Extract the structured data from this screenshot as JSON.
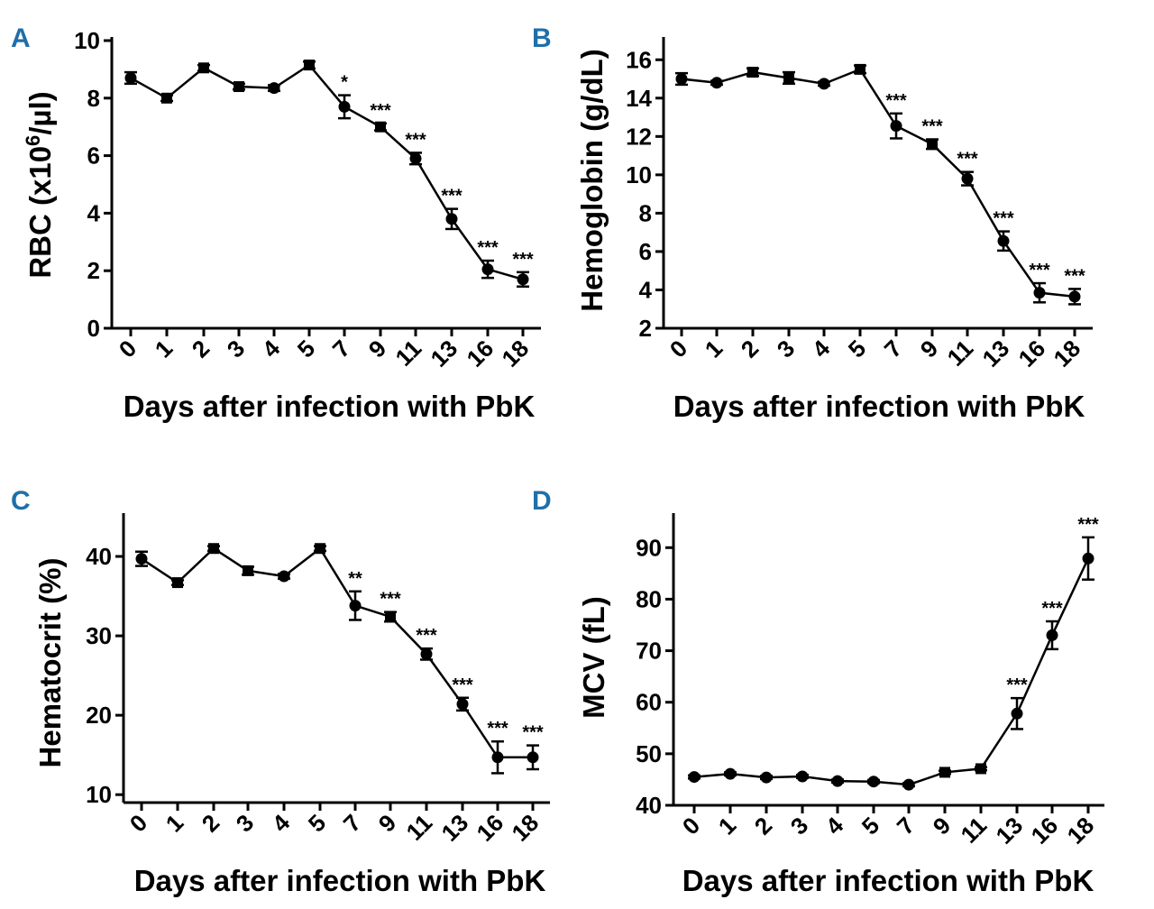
{
  "panel_color": "#1f6fa8",
  "chart_data": [
    {
      "panel": "A",
      "type": "line",
      "xlabel": "Days after infection with PbK",
      "ylabel": "RBC (x10",
      "ylabel_sup": "6",
      "ylabel_end": "/µl)",
      "categories": [
        "0",
        "1",
        "2",
        "3",
        "4",
        "5",
        "7",
        "9",
        "11",
        "13",
        "16",
        "18"
      ],
      "values": [
        8.7,
        8.0,
        9.05,
        8.4,
        8.35,
        9.15,
        7.7,
        7.0,
        5.9,
        3.8,
        2.05,
        1.7
      ],
      "errors": [
        0.2,
        0.1,
        0.1,
        0.1,
        0.1,
        0.12,
        0.4,
        0.12,
        0.2,
        0.35,
        0.3,
        0.25
      ],
      "markers": [
        "circle",
        "square",
        "square",
        "square",
        "circle",
        "square",
        "circle",
        "square",
        "circle",
        "circle",
        "circle",
        "circle"
      ],
      "significance": [
        "",
        "",
        "",
        "",
        "",
        "",
        "*",
        "***",
        "***",
        "***",
        "***",
        "***"
      ],
      "ylim": [
        0,
        10
      ],
      "yticks": [
        "0",
        "2",
        "4",
        "6",
        "8",
        "10"
      ]
    },
    {
      "panel": "B",
      "type": "line",
      "xlabel": "Days after infection with PbK",
      "ylabel": "Hemoglobin (g/dL)",
      "categories": [
        "0",
        "1",
        "2",
        "3",
        "4",
        "5",
        "7",
        "9",
        "11",
        "13",
        "16",
        "18"
      ],
      "values": [
        15.0,
        14.8,
        15.35,
        15.05,
        14.75,
        15.5,
        12.55,
        11.6,
        9.8,
        6.55,
        3.85,
        3.65
      ],
      "errors": [
        0.3,
        0.1,
        0.2,
        0.3,
        0.1,
        0.2,
        0.65,
        0.25,
        0.35,
        0.5,
        0.5,
        0.4
      ],
      "markers": [
        "circle",
        "circle",
        "square",
        "square",
        "circle",
        "square",
        "circle",
        "square",
        "circle",
        "circle",
        "circle",
        "circle"
      ],
      "significance": [
        "",
        "",
        "",
        "",
        "",
        "",
        "***",
        "***",
        "***",
        "***",
        "***",
        "***"
      ],
      "ylim": [
        2,
        17
      ],
      "yticks": [
        "2",
        "4",
        "6",
        "8",
        "10",
        "12",
        "14",
        "16"
      ]
    },
    {
      "panel": "C",
      "type": "line",
      "xlabel": "Days after infection with PbK",
      "ylabel": "Hematocrit (%)",
      "categories": [
        "0",
        "1",
        "2",
        "3",
        "4",
        "5",
        "7",
        "9",
        "11",
        "13",
        "16",
        "18"
      ],
      "values": [
        39.7,
        36.7,
        41.0,
        38.2,
        37.5,
        41.0,
        33.8,
        32.4,
        27.7,
        21.4,
        14.7,
        14.7
      ],
      "errors": [
        0.9,
        0.3,
        0.3,
        0.5,
        0.3,
        0.3,
        1.8,
        0.6,
        0.7,
        0.8,
        2.0,
        1.5
      ],
      "markers": [
        "circle",
        "square",
        "square",
        "square",
        "circle",
        "square",
        "circle",
        "square",
        "circle",
        "circle",
        "circle",
        "circle"
      ],
      "significance": [
        "",
        "",
        "",
        "",
        "",
        "",
        "**",
        "***",
        "***",
        "***",
        "***",
        "***"
      ],
      "ylim": [
        9,
        45
      ],
      "yticks": [
        "10",
        "20",
        "30",
        "40"
      ]
    },
    {
      "panel": "D",
      "type": "line",
      "xlabel": "Days after infection with PbK",
      "ylabel": "MCV (fL)",
      "categories": [
        "0",
        "1",
        "2",
        "3",
        "4",
        "5",
        "7",
        "9",
        "11",
        "13",
        "16",
        "18"
      ],
      "values": [
        45.5,
        46.1,
        45.4,
        45.6,
        44.7,
        44.6,
        44.0,
        46.4,
        47.1,
        57.8,
        73.0,
        87.9
      ],
      "errors": [
        0.3,
        0.3,
        0.3,
        0.3,
        0.3,
        0.3,
        0.3,
        0.3,
        0.3,
        3.0,
        2.7,
        4.1
      ],
      "markers": [
        "circle",
        "circle",
        "circle",
        "circle",
        "circle",
        "circle",
        "circle",
        "square",
        "square",
        "circle",
        "circle",
        "circle"
      ],
      "significance": [
        "",
        "",
        "",
        "",
        "",
        "",
        "",
        "",
        "",
        "***",
        "***",
        "***"
      ],
      "ylim": [
        40,
        96
      ],
      "yticks": [
        "40",
        "50",
        "60",
        "70",
        "80",
        "90"
      ]
    }
  ]
}
